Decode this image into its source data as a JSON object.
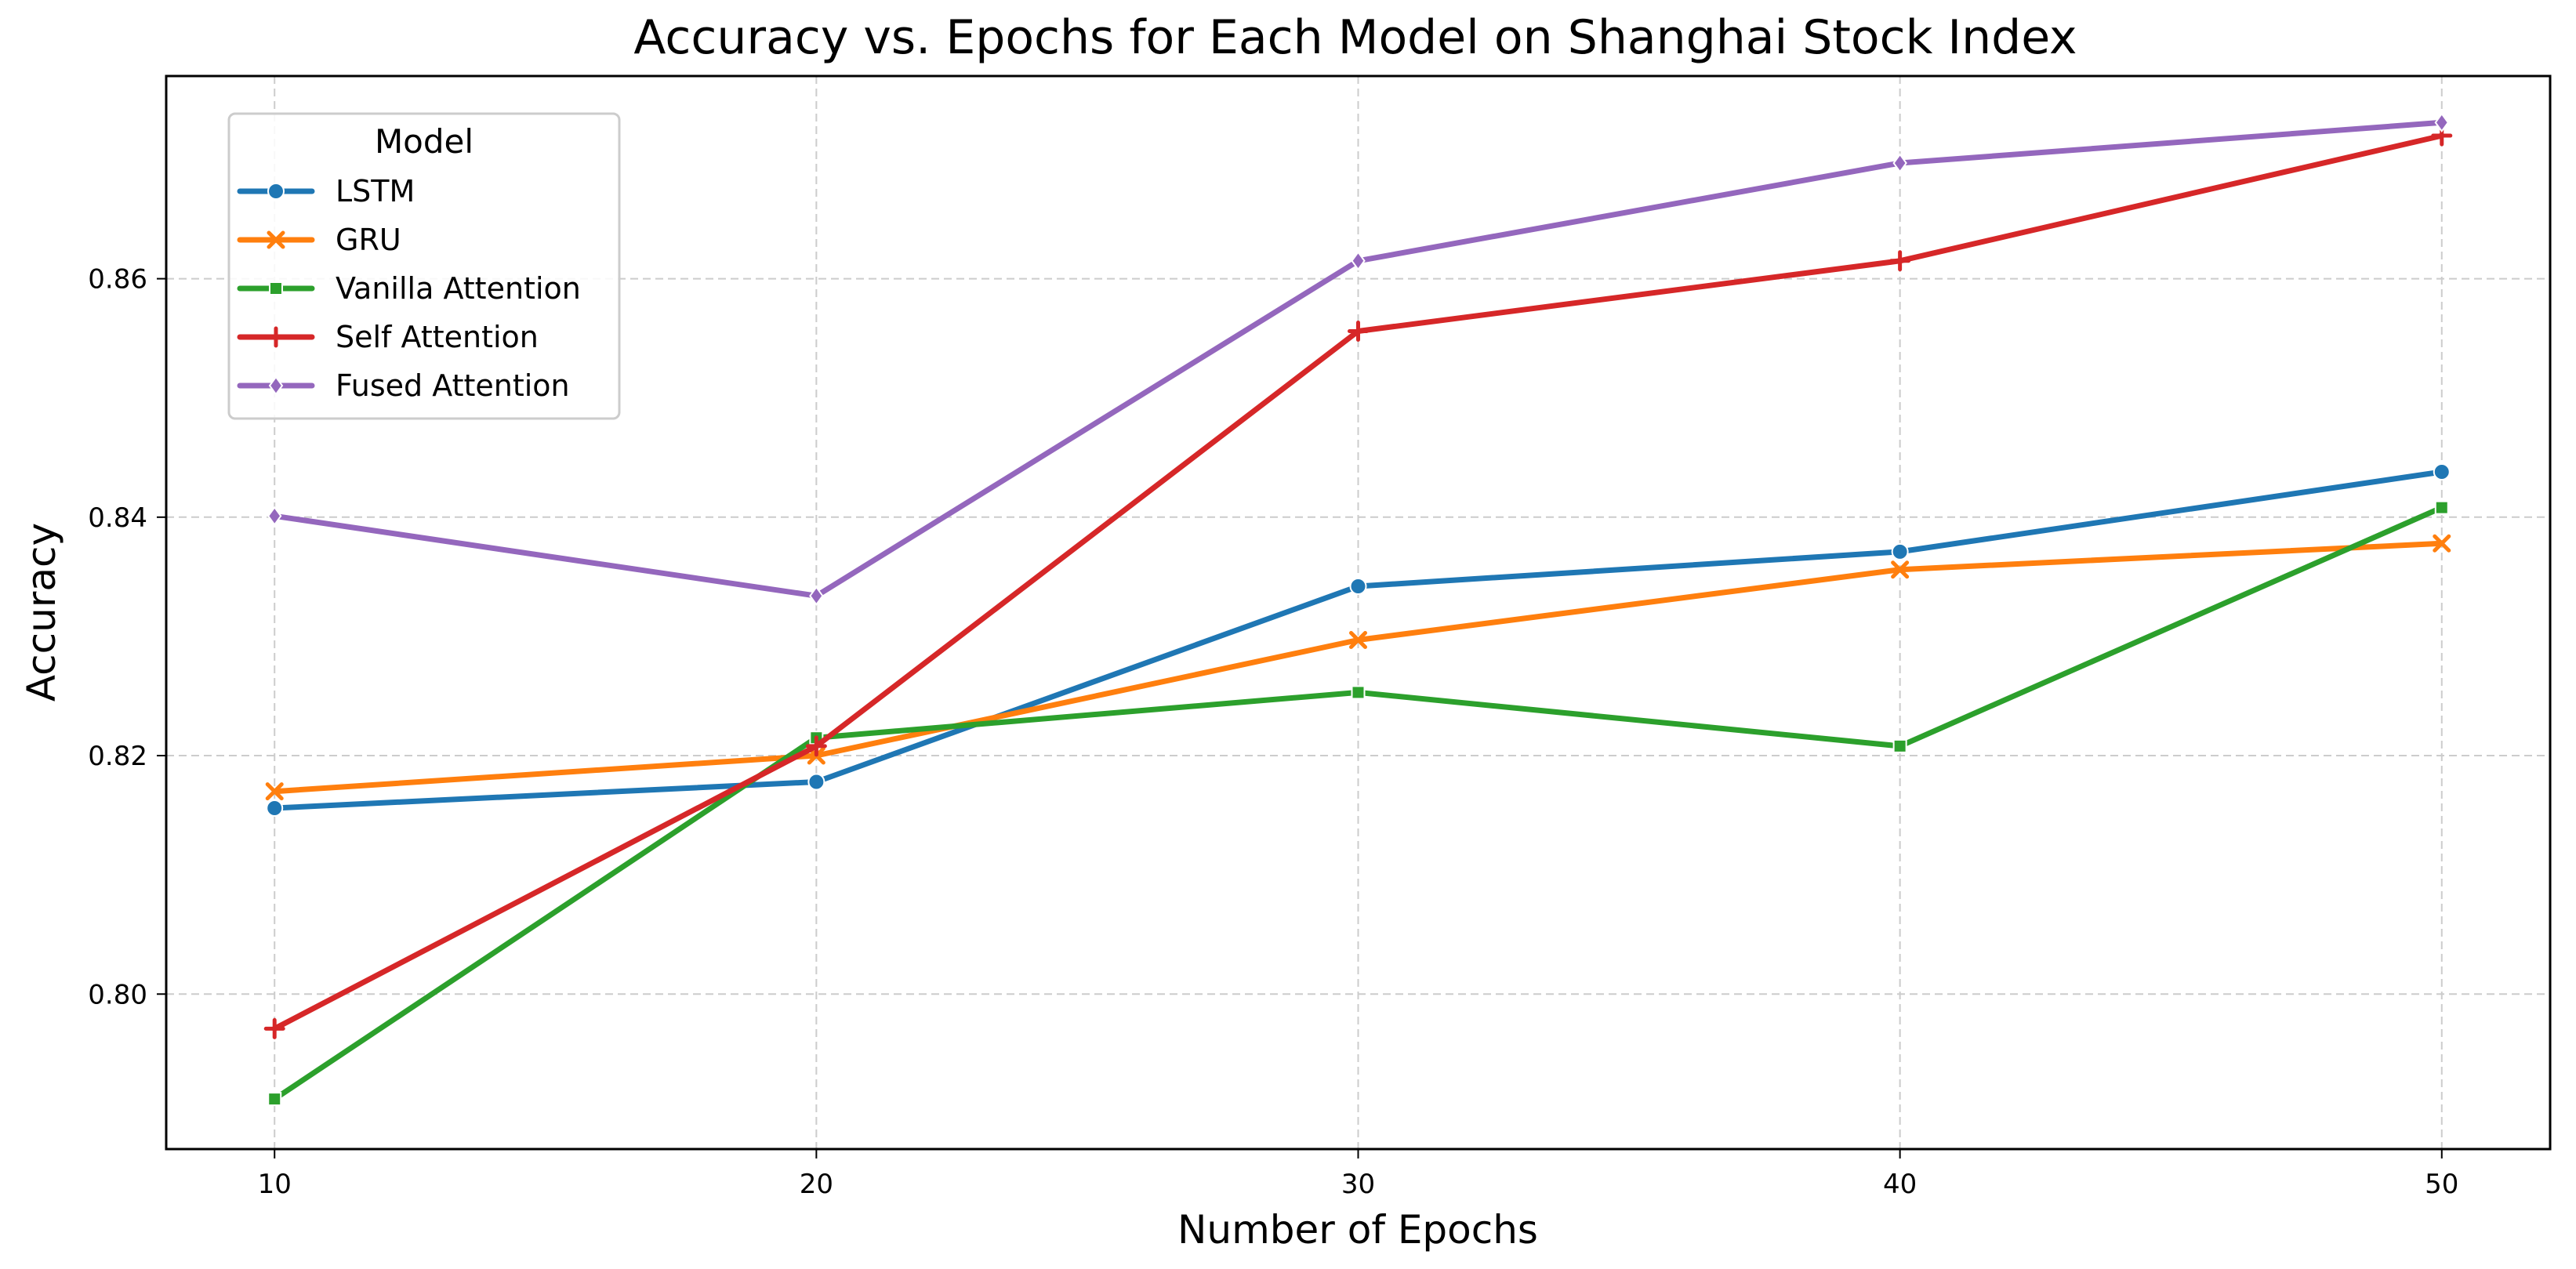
{
  "chart_data": {
    "type": "line",
    "title": "Accuracy vs. Epochs for Each Model on Shanghai Stock Index",
    "xlabel": "Number of Epochs",
    "ylabel": "Accuracy",
    "x": [
      10,
      20,
      30,
      40,
      50
    ],
    "x_ticks": [
      "10",
      "20",
      "30",
      "40",
      "50"
    ],
    "y_ticks": [
      "0.80",
      "0.82",
      "0.84",
      "0.86"
    ],
    "y_tick_values": [
      0.8,
      0.82,
      0.84,
      0.86
    ],
    "xlim": [
      8,
      52
    ],
    "ylim": [
      0.787,
      0.877
    ],
    "grid": true,
    "legend": {
      "title": "Model",
      "placement": "top-left"
    },
    "series": [
      {
        "name": "LSTM",
        "color": "#1f77b4",
        "marker": "circle",
        "values": [
          0.8156,
          0.8178,
          0.8342,
          0.8371,
          0.8438
        ]
      },
      {
        "name": "GRU",
        "color": "#ff7f0e",
        "marker": "x",
        "values": [
          0.817,
          0.82,
          0.8297,
          0.8356,
          0.8378
        ]
      },
      {
        "name": "Vanilla Attention",
        "color": "#2ca02c",
        "marker": "square",
        "values": [
          0.7912,
          0.8215,
          0.8253,
          0.8208,
          0.8408
        ]
      },
      {
        "name": "Self Attention",
        "color": "#d62728",
        "marker": "plus",
        "values": [
          0.7971,
          0.8208,
          0.8556,
          0.8615,
          0.872
        ]
      },
      {
        "name": "Fused Attention",
        "color": "#9467bd",
        "marker": "diamond",
        "values": [
          0.8401,
          0.8334,
          0.8615,
          0.8697,
          0.8731
        ]
      }
    ]
  }
}
